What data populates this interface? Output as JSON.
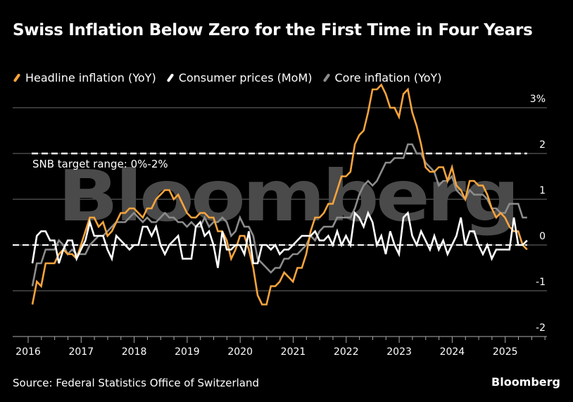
{
  "header": {
    "title": "Swiss Inflation Below Zero for the First Time in Four Years"
  },
  "legend": [
    {
      "label": "Headline inflation (YoY)",
      "color": "#f7a43c"
    },
    {
      "label": "Consumer prices (MoM)",
      "color": "#ffffff"
    },
    {
      "label": "Core inflation (YoY)",
      "color": "#8c8c8c"
    }
  ],
  "footer": {
    "source": "Source: Federal Statistics Office of Switzerland",
    "brand": "Bloomberg"
  },
  "watermark": "Bloomberg",
  "chart_data": {
    "type": "line",
    "title": "Swiss Inflation Below Zero for the First Time in Four Years",
    "xlabel": "",
    "ylabel": "",
    "x_start": "2016-01",
    "x_end": "2025-05",
    "frequency": "monthly",
    "xlim": [
      2016,
      2025.75
    ],
    "ylim": [
      -2,
      3
    ],
    "grid": true,
    "legend_position": "top-left",
    "x_ticks": [
      "2016",
      "2017",
      "2018",
      "2019",
      "2020",
      "2021",
      "2022",
      "2023",
      "2024",
      "2025"
    ],
    "y_ticks": [
      {
        "value": 3,
        "label": "3%"
      },
      {
        "value": 2,
        "label": "2"
      },
      {
        "value": 1,
        "label": "1"
      },
      {
        "value": 0,
        "label": "0"
      },
      {
        "value": -1,
        "label": "-1"
      },
      {
        "value": -2,
        "label": "-2"
      }
    ],
    "annotations": [
      {
        "text": "SNB target range: 0%-2%",
        "range": [
          0,
          2
        ]
      }
    ],
    "series": [
      {
        "name": "Headline inflation (YoY)",
        "color": "#f7a43c",
        "values": [
          -1.3,
          -0.8,
          -0.9,
          -0.4,
          -0.4,
          -0.4,
          -0.2,
          -0.1,
          -0.2,
          -0.2,
          -0.3,
          0.0,
          0.3,
          0.6,
          0.6,
          0.4,
          0.5,
          0.2,
          0.3,
          0.5,
          0.7,
          0.7,
          0.8,
          0.8,
          0.7,
          0.6,
          0.8,
          0.8,
          1.0,
          1.1,
          1.2,
          1.2,
          1.0,
          1.1,
          0.9,
          0.7,
          0.6,
          0.6,
          0.7,
          0.7,
          0.6,
          0.6,
          0.3,
          0.3,
          0.1,
          -0.3,
          -0.1,
          0.2,
          0.2,
          -0.1,
          -0.5,
          -1.1,
          -1.3,
          -1.3,
          -0.9,
          -0.9,
          -0.8,
          -0.6,
          -0.7,
          -0.8,
          -0.5,
          -0.5,
          -0.2,
          0.3,
          0.6,
          0.6,
          0.7,
          0.9,
          0.9,
          1.2,
          1.5,
          1.5,
          1.6,
          2.2,
          2.4,
          2.5,
          2.9,
          3.4,
          3.4,
          3.5,
          3.3,
          3.0,
          3.0,
          2.8,
          3.3,
          3.4,
          2.9,
          2.6,
          2.2,
          1.7,
          1.6,
          1.6,
          1.7,
          1.7,
          1.4,
          1.7,
          1.3,
          1.2,
          1.0,
          1.4,
          1.4,
          1.3,
          1.3,
          1.1,
          0.8,
          0.6,
          0.7,
          0.6,
          0.4,
          0.3,
          0.3,
          0.0,
          -0.1
        ]
      },
      {
        "name": "Consumer prices (MoM)",
        "color": "#ffffff",
        "values": [
          -0.4,
          0.2,
          0.3,
          0.3,
          0.1,
          0.1,
          -0.4,
          -0.1,
          0.1,
          0.1,
          -0.3,
          -0.1,
          0.1,
          0.5,
          0.2,
          0.2,
          0.2,
          -0.1,
          -0.3,
          0.2,
          0.1,
          0.0,
          -0.1,
          0.0,
          0.0,
          0.4,
          0.4,
          0.2,
          0.4,
          0.0,
          -0.2,
          0.0,
          0.1,
          0.2,
          -0.3,
          -0.3,
          -0.3,
          0.4,
          0.5,
          0.2,
          0.3,
          0.0,
          -0.5,
          0.3,
          -0.1,
          -0.1,
          0.0,
          0.0,
          -0.2,
          0.3,
          -0.4,
          -0.4,
          0.0,
          0.0,
          -0.1,
          0.0,
          -0.2,
          -0.1,
          -0.1,
          0.0,
          0.1,
          0.2,
          0.2,
          0.2,
          0.3,
          0.1,
          0.1,
          0.2,
          0.0,
          0.3,
          0.0,
          0.2,
          0.0,
          0.7,
          0.6,
          0.4,
          0.7,
          0.5,
          0.0,
          0.2,
          -0.2,
          0.3,
          0.0,
          -0.2,
          0.6,
          0.7,
          0.2,
          0.0,
          0.3,
          0.1,
          -0.1,
          0.2,
          -0.1,
          0.1,
          -0.2,
          0.0,
          0.2,
          0.6,
          0.0,
          0.3,
          0.3,
          0.0,
          -0.2,
          0.0,
          -0.3,
          -0.1,
          -0.1,
          -0.1,
          -0.1,
          0.6,
          0.0,
          0.0,
          0.1
        ]
      },
      {
        "name": "Core inflation (YoY)",
        "color": "#8c8c8c",
        "values": [
          -0.9,
          -0.4,
          -0.4,
          -0.1,
          -0.1,
          -0.1,
          0.1,
          0.0,
          -0.2,
          -0.1,
          -0.2,
          -0.2,
          -0.2,
          0.0,
          0.1,
          0.2,
          0.2,
          0.3,
          0.4,
          0.5,
          0.5,
          0.5,
          0.6,
          0.7,
          0.6,
          0.5,
          0.6,
          0.5,
          0.5,
          0.6,
          0.7,
          0.6,
          0.6,
          0.5,
          0.5,
          0.4,
          0.5,
          0.4,
          0.4,
          0.6,
          0.4,
          0.5,
          0.5,
          0.6,
          0.5,
          0.2,
          0.3,
          0.6,
          0.4,
          0.4,
          0.2,
          -0.3,
          -0.4,
          -0.5,
          -0.6,
          -0.5,
          -0.5,
          -0.3,
          -0.3,
          -0.2,
          -0.2,
          -0.1,
          0.0,
          0.2,
          0.1,
          0.3,
          0.4,
          0.4,
          0.4,
          0.6,
          0.6,
          0.6,
          0.6,
          0.8,
          1.1,
          1.3,
          1.4,
          1.3,
          1.4,
          1.6,
          1.8,
          1.8,
          1.9,
          1.9,
          1.9,
          2.2,
          2.2,
          2.0,
          2.0,
          1.8,
          1.7,
          1.6,
          1.3,
          1.4,
          1.4,
          1.5,
          1.2,
          1.1,
          1.0,
          1.2,
          1.1,
          1.1,
          1.1,
          1.0,
          0.8,
          0.8,
          0.7,
          0.7,
          0.9,
          0.9,
          0.9,
          0.6,
          0.6
        ]
      }
    ]
  }
}
